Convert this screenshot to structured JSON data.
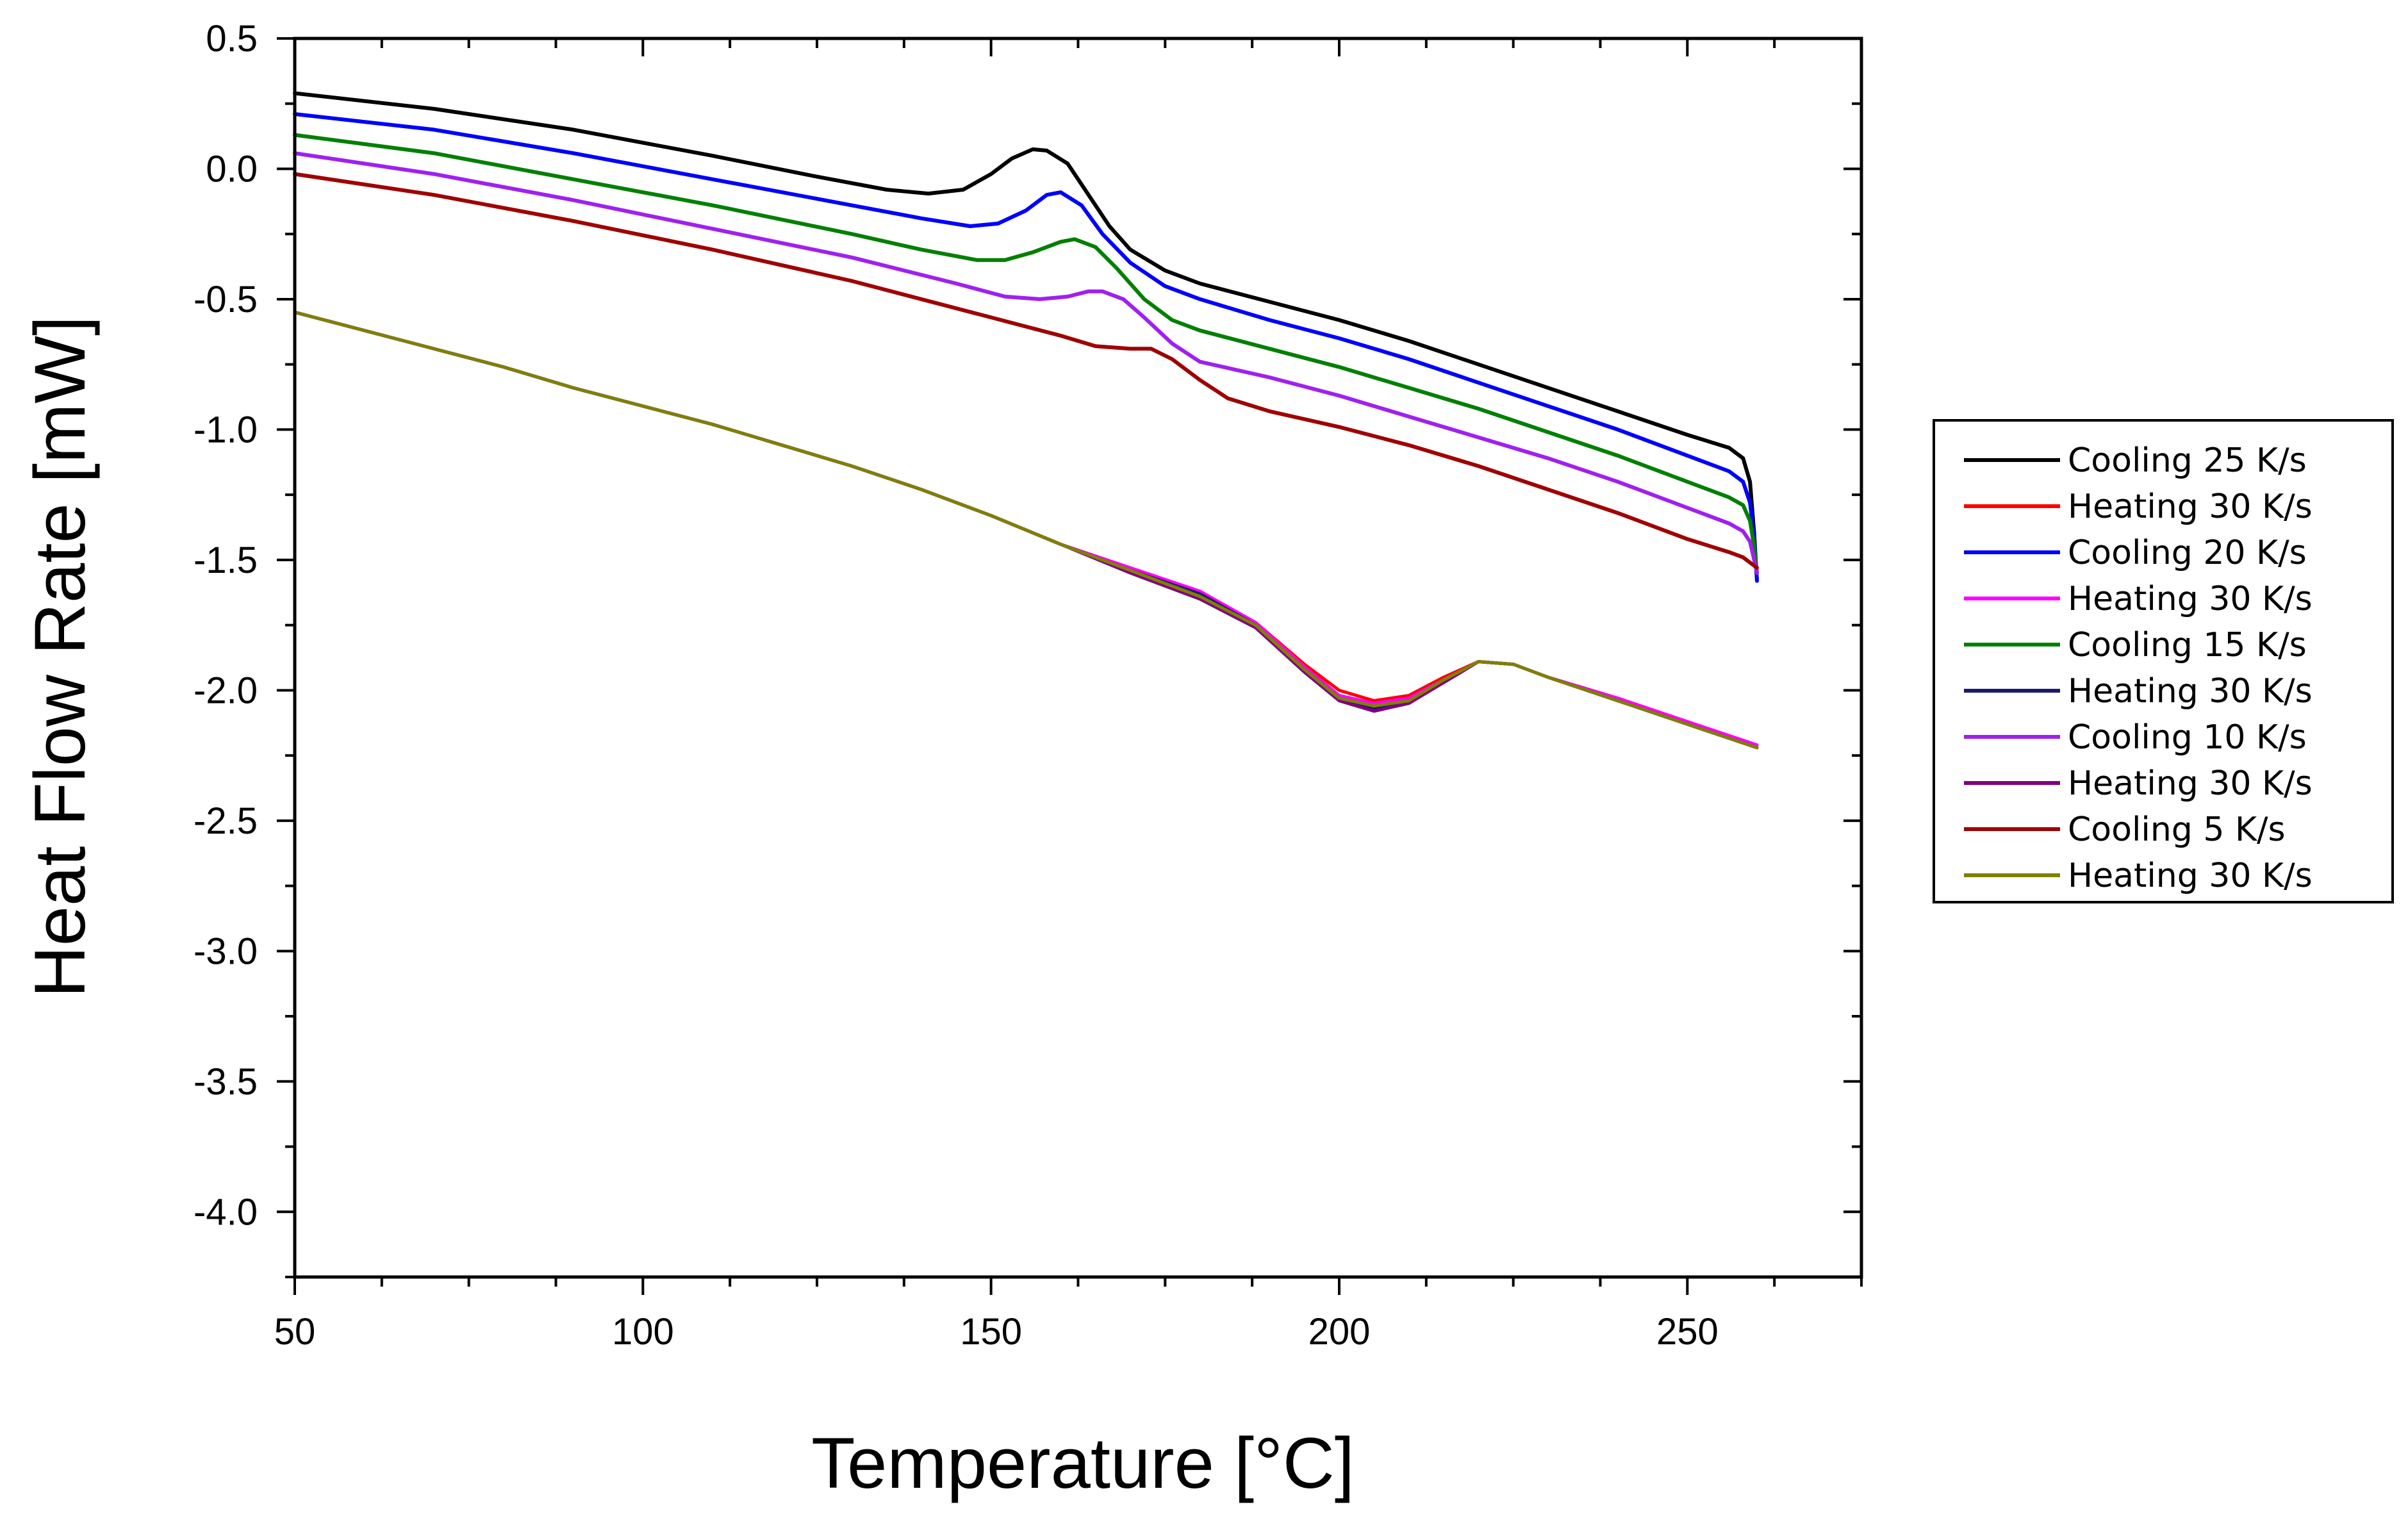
{
  "chart_data": {
    "type": "line",
    "title": "",
    "xlabel": "Temperature [°C]",
    "ylabel": "Heat Flow Rate [mW]",
    "xlim": [
      50,
      275
    ],
    "ylim": [
      -4.25,
      0.5
    ],
    "x_ticks": [
      50,
      100,
      150,
      200,
      250
    ],
    "x_tick_labels": [
      "50",
      "100",
      "150",
      "200",
      "250"
    ],
    "y_ticks": [
      0.5,
      0.0,
      -0.5,
      -1.0,
      -1.5,
      -2.0,
      -2.5,
      -3.0,
      -3.5,
      -4.0
    ],
    "y_tick_labels": [
      "0.5",
      "0.0",
      "-0.5",
      "-1.0",
      "-1.5",
      "-2.0",
      "-2.5",
      "-3.0",
      "-3.5",
      "-4.0"
    ],
    "grid": false,
    "legend_position": "right-outside",
    "series": [
      {
        "name": "Cooling 25 K/s",
        "color": "#000000",
        "points": [
          [
            50,
            0.29
          ],
          [
            70,
            0.23
          ],
          [
            90,
            0.15
          ],
          [
            110,
            0.05
          ],
          [
            125,
            -0.03
          ],
          [
            135,
            -0.08
          ],
          [
            141,
            -0.095
          ],
          [
            146,
            -0.08
          ],
          [
            150,
            -0.02
          ],
          [
            153,
            0.04
          ],
          [
            156,
            0.075
          ],
          [
            158,
            0.07
          ],
          [
            161,
            0.02
          ],
          [
            164,
            -0.1
          ],
          [
            167,
            -0.22
          ],
          [
            170,
            -0.31
          ],
          [
            175,
            -0.39
          ],
          [
            180,
            -0.44
          ],
          [
            190,
            -0.51
          ],
          [
            200,
            -0.58
          ],
          [
            210,
            -0.66
          ],
          [
            220,
            -0.75
          ],
          [
            230,
            -0.84
          ],
          [
            240,
            -0.93
          ],
          [
            250,
            -1.02
          ],
          [
            256,
            -1.07
          ],
          [
            258,
            -1.11
          ],
          [
            259,
            -1.2
          ],
          [
            259.6,
            -1.4
          ],
          [
            260,
            -1.58
          ]
        ]
      },
      {
        "name": "Heating 30 K/s",
        "color": "#ff0000",
        "points": [
          [
            50,
            -0.55
          ],
          [
            60,
            -0.62
          ],
          [
            70,
            -0.69
          ],
          [
            80,
            -0.76
          ],
          [
            90,
            -0.84
          ],
          [
            100,
            -0.91
          ],
          [
            110,
            -0.98
          ],
          [
            120,
            -1.06
          ],
          [
            130,
            -1.14
          ],
          [
            140,
            -1.23
          ],
          [
            150,
            -1.33
          ],
          [
            160,
            -1.44
          ],
          [
            170,
            -1.54
          ],
          [
            180,
            -1.63
          ],
          [
            188,
            -1.74
          ],
          [
            195,
            -1.9
          ],
          [
            200,
            -2.0
          ],
          [
            205,
            -2.04
          ],
          [
            210,
            -2.02
          ],
          [
            215,
            -1.95
          ],
          [
            220,
            -1.89
          ],
          [
            225,
            -1.9
          ],
          [
            230,
            -1.95
          ],
          [
            240,
            -2.03
          ],
          [
            250,
            -2.12
          ],
          [
            260,
            -2.21
          ]
        ]
      },
      {
        "name": "Cooling 20 K/s",
        "color": "#0000ff",
        "points": [
          [
            50,
            0.21
          ],
          [
            70,
            0.15
          ],
          [
            90,
            0.06
          ],
          [
            110,
            -0.04
          ],
          [
            130,
            -0.14
          ],
          [
            140,
            -0.19
          ],
          [
            147,
            -0.22
          ],
          [
            151,
            -0.21
          ],
          [
            155,
            -0.16
          ],
          [
            158,
            -0.1
          ],
          [
            160,
            -0.09
          ],
          [
            163,
            -0.14
          ],
          [
            166,
            -0.25
          ],
          [
            170,
            -0.36
          ],
          [
            175,
            -0.45
          ],
          [
            180,
            -0.5
          ],
          [
            190,
            -0.58
          ],
          [
            200,
            -0.65
          ],
          [
            210,
            -0.73
          ],
          [
            220,
            -0.82
          ],
          [
            230,
            -0.91
          ],
          [
            240,
            -1.0
          ],
          [
            250,
            -1.1
          ],
          [
            256,
            -1.16
          ],
          [
            258,
            -1.2
          ],
          [
            259,
            -1.28
          ],
          [
            259.6,
            -1.42
          ],
          [
            260,
            -1.58
          ]
        ]
      },
      {
        "name": "Heating 30 K/s",
        "color": "#ff00ff",
        "points": [
          [
            50,
            -0.55
          ],
          [
            60,
            -0.62
          ],
          [
            70,
            -0.69
          ],
          [
            80,
            -0.76
          ],
          [
            90,
            -0.84
          ],
          [
            100,
            -0.91
          ],
          [
            110,
            -0.98
          ],
          [
            120,
            -1.06
          ],
          [
            130,
            -1.14
          ],
          [
            140,
            -1.23
          ],
          [
            150,
            -1.33
          ],
          [
            160,
            -1.44
          ],
          [
            170,
            -1.53
          ],
          [
            180,
            -1.62
          ],
          [
            188,
            -1.74
          ],
          [
            195,
            -1.91
          ],
          [
            200,
            -2.02
          ],
          [
            205,
            -2.05
          ],
          [
            210,
            -2.03
          ],
          [
            215,
            -1.96
          ],
          [
            220,
            -1.89
          ],
          [
            225,
            -1.9
          ],
          [
            230,
            -1.95
          ],
          [
            240,
            -2.03
          ],
          [
            250,
            -2.12
          ],
          [
            260,
            -2.21
          ]
        ]
      },
      {
        "name": "Cooling 15 K/s",
        "color": "#008000",
        "points": [
          [
            50,
            0.13
          ],
          [
            70,
            0.06
          ],
          [
            90,
            -0.04
          ],
          [
            110,
            -0.14
          ],
          [
            130,
            -0.25
          ],
          [
            140,
            -0.31
          ],
          [
            148,
            -0.35
          ],
          [
            152,
            -0.35
          ],
          [
            156,
            -0.32
          ],
          [
            160,
            -0.28
          ],
          [
            162,
            -0.27
          ],
          [
            165,
            -0.3
          ],
          [
            168,
            -0.38
          ],
          [
            172,
            -0.5
          ],
          [
            176,
            -0.58
          ],
          [
            180,
            -0.62
          ],
          [
            190,
            -0.69
          ],
          [
            200,
            -0.76
          ],
          [
            210,
            -0.84
          ],
          [
            220,
            -0.92
          ],
          [
            230,
            -1.01
          ],
          [
            240,
            -1.1
          ],
          [
            250,
            -1.2
          ],
          [
            256,
            -1.26
          ],
          [
            258,
            -1.29
          ],
          [
            259,
            -1.35
          ],
          [
            259.6,
            -1.45
          ],
          [
            260,
            -1.55
          ]
        ]
      },
      {
        "name": "Heating 30 K/s",
        "color": "#1a1a6e",
        "points": [
          [
            50,
            -0.55
          ],
          [
            60,
            -0.62
          ],
          [
            70,
            -0.69
          ],
          [
            80,
            -0.76
          ],
          [
            90,
            -0.84
          ],
          [
            100,
            -0.91
          ],
          [
            110,
            -0.98
          ],
          [
            120,
            -1.06
          ],
          [
            130,
            -1.14
          ],
          [
            140,
            -1.23
          ],
          [
            150,
            -1.33
          ],
          [
            160,
            -1.44
          ],
          [
            170,
            -1.54
          ],
          [
            180,
            -1.63
          ],
          [
            188,
            -1.75
          ],
          [
            195,
            -1.92
          ],
          [
            200,
            -2.03
          ],
          [
            205,
            -2.07
          ],
          [
            210,
            -2.04
          ],
          [
            215,
            -1.97
          ],
          [
            220,
            -1.89
          ],
          [
            225,
            -1.9
          ],
          [
            230,
            -1.95
          ],
          [
            240,
            -2.04
          ],
          [
            250,
            -2.13
          ],
          [
            260,
            -2.22
          ]
        ]
      },
      {
        "name": "Cooling 10 K/s",
        "color": "#a020f0",
        "points": [
          [
            50,
            0.06
          ],
          [
            70,
            -0.02
          ],
          [
            90,
            -0.12
          ],
          [
            110,
            -0.23
          ],
          [
            130,
            -0.34
          ],
          [
            145,
            -0.44
          ],
          [
            152,
            -0.49
          ],
          [
            157,
            -0.5
          ],
          [
            161,
            -0.49
          ],
          [
            164,
            -0.47
          ],
          [
            166,
            -0.47
          ],
          [
            169,
            -0.5
          ],
          [
            172,
            -0.57
          ],
          [
            176,
            -0.67
          ],
          [
            180,
            -0.74
          ],
          [
            190,
            -0.8
          ],
          [
            200,
            -0.87
          ],
          [
            210,
            -0.95
          ],
          [
            220,
            -1.03
          ],
          [
            230,
            -1.11
          ],
          [
            240,
            -1.2
          ],
          [
            250,
            -1.3
          ],
          [
            256,
            -1.36
          ],
          [
            258,
            -1.39
          ],
          [
            259,
            -1.43
          ],
          [
            259.6,
            -1.5
          ],
          [
            260,
            -1.55
          ]
        ]
      },
      {
        "name": "Heating 30 K/s",
        "color": "#800080",
        "points": [
          [
            50,
            -0.55
          ],
          [
            60,
            -0.62
          ],
          [
            70,
            -0.69
          ],
          [
            80,
            -0.76
          ],
          [
            90,
            -0.84
          ],
          [
            100,
            -0.91
          ],
          [
            110,
            -0.98
          ],
          [
            120,
            -1.06
          ],
          [
            130,
            -1.14
          ],
          [
            140,
            -1.23
          ],
          [
            150,
            -1.33
          ],
          [
            160,
            -1.44
          ],
          [
            170,
            -1.55
          ],
          [
            180,
            -1.65
          ],
          [
            188,
            -1.76
          ],
          [
            195,
            -1.93
          ],
          [
            200,
            -2.04
          ],
          [
            205,
            -2.08
          ],
          [
            210,
            -2.05
          ],
          [
            215,
            -1.97
          ],
          [
            220,
            -1.89
          ],
          [
            225,
            -1.9
          ],
          [
            230,
            -1.95
          ],
          [
            240,
            -2.04
          ],
          [
            250,
            -2.13
          ],
          [
            260,
            -2.22
          ]
        ]
      },
      {
        "name": "Cooling 5 K/s",
        "color": "#a00000",
        "points": [
          [
            50,
            -0.02
          ],
          [
            70,
            -0.1
          ],
          [
            90,
            -0.2
          ],
          [
            110,
            -0.31
          ],
          [
            130,
            -0.43
          ],
          [
            150,
            -0.57
          ],
          [
            160,
            -0.64
          ],
          [
            165,
            -0.68
          ],
          [
            170,
            -0.69
          ],
          [
            173,
            -0.69
          ],
          [
            176,
            -0.73
          ],
          [
            180,
            -0.81
          ],
          [
            184,
            -0.88
          ],
          [
            190,
            -0.93
          ],
          [
            200,
            -0.99
          ],
          [
            210,
            -1.06
          ],
          [
            220,
            -1.14
          ],
          [
            230,
            -1.23
          ],
          [
            240,
            -1.32
          ],
          [
            250,
            -1.42
          ],
          [
            256,
            -1.47
          ],
          [
            258,
            -1.49
          ],
          [
            259,
            -1.51
          ],
          [
            260,
            -1.53
          ]
        ]
      },
      {
        "name": "Heating 30 K/s",
        "color": "#808000",
        "points": [
          [
            50,
            -0.55
          ],
          [
            60,
            -0.62
          ],
          [
            70,
            -0.69
          ],
          [
            80,
            -0.76
          ],
          [
            90,
            -0.84
          ],
          [
            100,
            -0.91
          ],
          [
            110,
            -0.98
          ],
          [
            120,
            -1.06
          ],
          [
            130,
            -1.14
          ],
          [
            140,
            -1.23
          ],
          [
            150,
            -1.33
          ],
          [
            160,
            -1.44
          ],
          [
            170,
            -1.54
          ],
          [
            180,
            -1.64
          ],
          [
            188,
            -1.75
          ],
          [
            195,
            -1.92
          ],
          [
            200,
            -2.03
          ],
          [
            205,
            -2.06
          ],
          [
            210,
            -2.04
          ],
          [
            215,
            -1.96
          ],
          [
            220,
            -1.89
          ],
          [
            225,
            -1.9
          ],
          [
            230,
            -1.95
          ],
          [
            240,
            -2.04
          ],
          [
            250,
            -2.13
          ],
          [
            260,
            -2.22
          ]
        ]
      }
    ]
  }
}
